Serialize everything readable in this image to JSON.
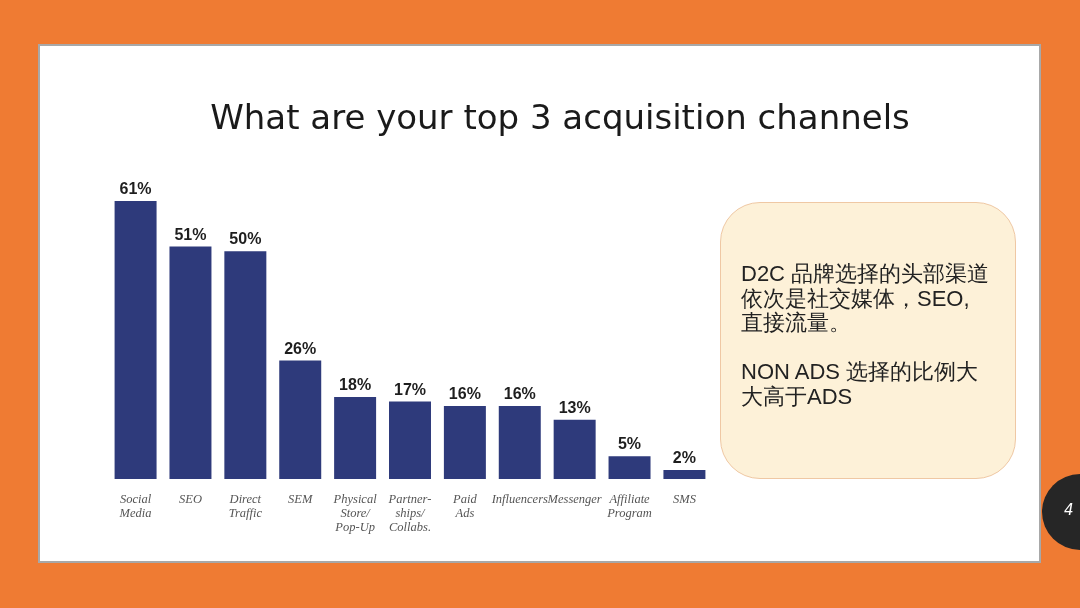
{
  "chart_data": {
    "type": "bar",
    "title": "What are your top 3 acquisition channels",
    "categories": [
      "Social\nMedia",
      "SEO",
      "Direct\nTraffic",
      "SEM",
      "Physical\nStore/\nPop-Up",
      "Partner-\nships/\nCollabs.",
      "Paid\nAds",
      "Influencers",
      "Messenger",
      "Affiliate\nProgram",
      "SMS"
    ],
    "values": [
      61,
      51,
      50,
      26,
      18,
      17,
      16,
      16,
      13,
      5,
      2
    ],
    "value_labels": [
      "61%",
      "51%",
      "50%",
      "26%",
      "18%",
      "17%",
      "16%",
      "16%",
      "13%",
      "5%",
      "2%"
    ],
    "color": "#2e3a7b",
    "annotations": [
      "D2C 品牌选择的头部渠道依次是社交媒体，SEO,直接流量。\n\nNON ADS 选择的比例大大高于ADS",
      "4"
    ]
  }
}
